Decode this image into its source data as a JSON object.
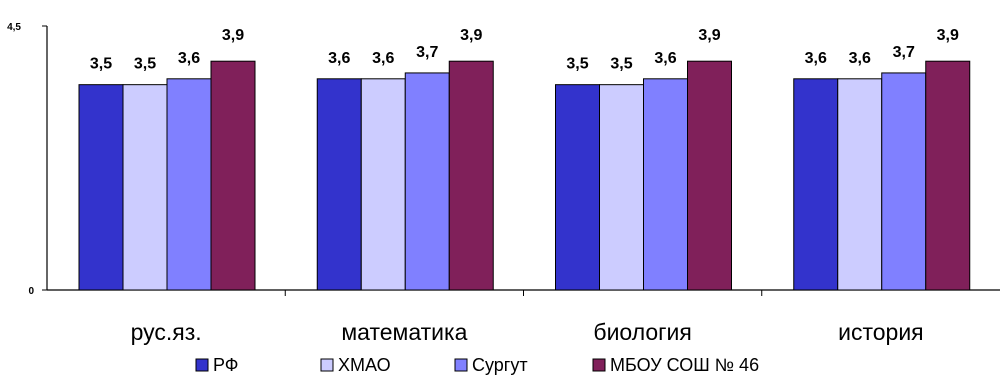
{
  "chart_data": {
    "type": "bar",
    "categories": [
      "рус.яз.",
      "математика",
      "биология",
      "история"
    ],
    "series": [
      {
        "name": "РФ",
        "color": "#3333CC",
        "values": [
          3.5,
          3.6,
          3.5,
          3.6
        ]
      },
      {
        "name": "ХМАО",
        "color": "#CCCCFF",
        "values": [
          3.5,
          3.6,
          3.5,
          3.6
        ]
      },
      {
        "name": "Сургут",
        "color": "#8080FF",
        "values": [
          3.6,
          3.7,
          3.6,
          3.7
        ]
      },
      {
        "name": "МБОУ СОШ № 46",
        "color": "#80205A",
        "values": [
          3.9,
          3.9,
          3.9,
          3.9
        ]
      }
    ],
    "data_labels": [
      [
        "3,5",
        "3,5",
        "3,6",
        "3,9"
      ],
      [
        "3,6",
        "3,6",
        "3,7",
        "3,9"
      ],
      [
        "3,5",
        "3,5",
        "3,6",
        "3,9"
      ],
      [
        "3,6",
        "3,6",
        "3,7",
        "3,9"
      ]
    ],
    "ylim": [
      0,
      4.5
    ],
    "y_ticks": [
      "0",
      "4,5"
    ],
    "grid": false,
    "legend_position": "bottom"
  }
}
